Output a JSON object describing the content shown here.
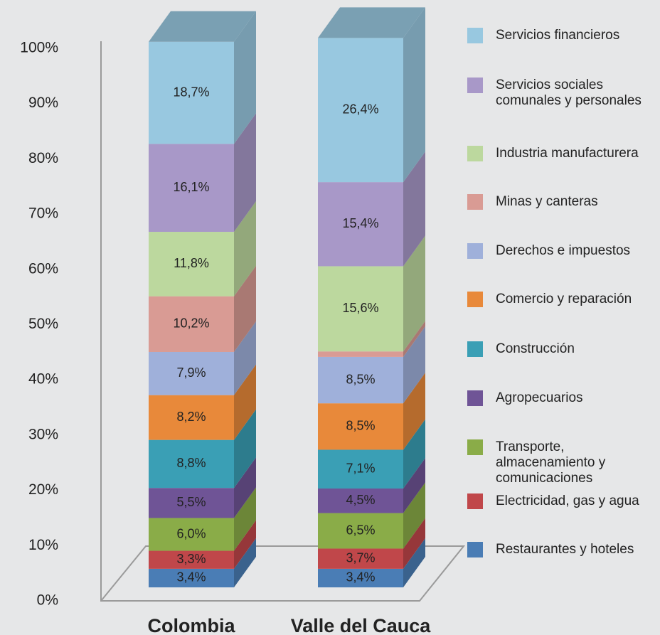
{
  "chart_data": {
    "type": "bar3d_stacked",
    "categories": [
      "Colombia",
      "Valle del Cauca"
    ],
    "ylim": [
      0,
      100
    ],
    "yticks": [
      {
        "value": 0,
        "label": "0%"
      },
      {
        "value": 10,
        "label": "10%"
      },
      {
        "value": 20,
        "label": "20%"
      },
      {
        "value": 30,
        "label": "30%"
      },
      {
        "value": 40,
        "label": "40%"
      },
      {
        "value": 50,
        "label": "50%"
      },
      {
        "value": 60,
        "label": "60%"
      },
      {
        "value": 70,
        "label": "70%"
      },
      {
        "value": 80,
        "label": "80%"
      },
      {
        "value": 90,
        "label": "90%"
      },
      {
        "value": 100,
        "label": "100%"
      }
    ],
    "series": [
      {
        "name": "Restaurantes y hoteles",
        "color": "#4a7db5",
        "values": [
          3.4,
          3.4
        ],
        "value_labels": [
          "3,4%",
          "3,4%"
        ]
      },
      {
        "name": "Electricidad, gas y agua",
        "color": "#c0474a",
        "values": [
          3.3,
          3.7
        ],
        "value_labels": [
          "3,3%",
          "3,7%"
        ]
      },
      {
        "name": "Transporte,\nalmacenamiento y\ncomunicaciones",
        "color": "#8aac48",
        "values": [
          6.0,
          6.5
        ],
        "value_labels": [
          "6,0%",
          "6,5%"
        ]
      },
      {
        "name": "Agropecuarios",
        "color": "#6f5496",
        "values": [
          5.5,
          4.5
        ],
        "value_labels": [
          "5,5%",
          "4,5%"
        ]
      },
      {
        "name": "Construcción",
        "color": "#3a9fb5",
        "values": [
          8.8,
          7.1
        ],
        "value_labels": [
          "8,8%",
          "7,1%"
        ]
      },
      {
        "name": "Comercio y reparación",
        "color": "#e8893a",
        "values": [
          8.2,
          8.5
        ],
        "value_labels": [
          "8,2%",
          "8,5%"
        ]
      },
      {
        "name": "Derechos e impuestos",
        "color": "#9fb0da",
        "values": [
          7.9,
          8.5
        ],
        "value_labels": [
          "7,9%",
          "8,5%"
        ]
      },
      {
        "name": "Minas y canteras",
        "color": "#d99b94",
        "values": [
          10.2,
          1.0
        ],
        "value_labels": [
          "10,2%",
          null
        ]
      },
      {
        "name": "Industria manufacturera",
        "color": "#bcd89e",
        "values": [
          11.8,
          15.6
        ],
        "value_labels": [
          "11,8%",
          "15,6%"
        ]
      },
      {
        "name": "Servicios sociales\ncomunales y personales",
        "color": "#a898c8",
        "values": [
          16.1,
          15.4
        ],
        "value_labels": [
          "16,1%",
          "15,4%"
        ]
      },
      {
        "name": "Servicios financieros",
        "color": "#98c8e0",
        "values": [
          18.7,
          26.4
        ],
        "value_labels": [
          "18,7%",
          "26,4%"
        ]
      }
    ]
  }
}
